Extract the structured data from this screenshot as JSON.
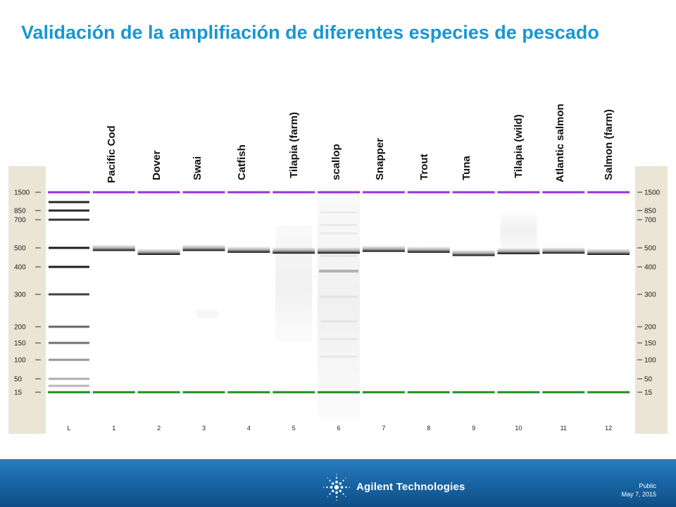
{
  "slide": {
    "title": "Validación de la amplifiación de diferentes especies de pescado"
  },
  "gel": {
    "ladder_sizes": [
      "1500",
      "850",
      "700",
      "500",
      "400",
      "300",
      "200",
      "150",
      "100",
      "50",
      "15"
    ],
    "lane_ids": [
      "L",
      "1",
      "2",
      "3",
      "4",
      "5",
      "6",
      "7",
      "8",
      "9",
      "10",
      "11",
      "12"
    ],
    "sample_names": [
      "Pacific Cod",
      "Dover",
      "Swai",
      "Catfish",
      "Tilapia (farm)",
      "scallop",
      "Snapper",
      "Trout",
      "Tuna",
      "Tilapia (wild)",
      "Atlantic salmon",
      "Salmon (farm)"
    ],
    "ladder_band_sizes": [
      1500,
      1000,
      850,
      700,
      500,
      400,
      300,
      200,
      150,
      100,
      50,
      25,
      15
    ],
    "sample_band_sizes": [
      490,
      468,
      490,
      480,
      475,
      475,
      485,
      480,
      462,
      472,
      475,
      468
    ],
    "upper_marker_size": 1500,
    "lower_marker_size": 15,
    "colors": {
      "upper_marker": "#9b30d9",
      "lower_marker": "#228b22",
      "band": "#111111",
      "scale_panel": "#ebe5d6",
      "title": "#1a96cf"
    }
  },
  "footer": {
    "brand_icon": "agilent-spark-logo-icon",
    "brand": "Agilent Technologies",
    "classification": "Public",
    "date": "May 7, 2015"
  }
}
